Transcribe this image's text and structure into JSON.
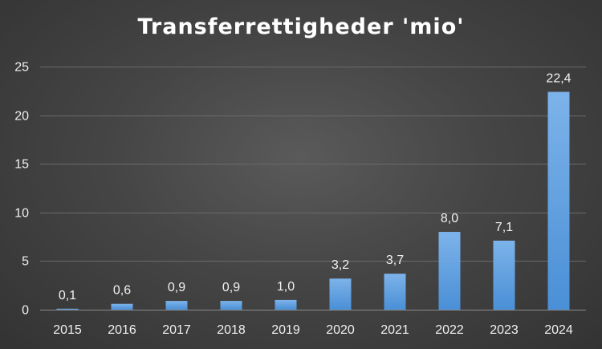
{
  "chart_data": {
    "type": "bar",
    "title": "Transferrettigheder 'mio'",
    "xlabel": "",
    "ylabel": "",
    "categories": [
      "2015",
      "2016",
      "2017",
      "2018",
      "2019",
      "2020",
      "2021",
      "2022",
      "2023",
      "2024"
    ],
    "values": [
      0.1,
      0.6,
      0.9,
      0.9,
      1.0,
      3.2,
      3.7,
      8.0,
      7.1,
      22.4
    ],
    "data_labels": [
      "0,1",
      "0,6",
      "0,9",
      "0,9",
      "1,0",
      "3,2",
      "3,7",
      "8,0",
      "7,1",
      "22,4"
    ],
    "ylim": [
      0,
      25
    ],
    "yticks": [
      0,
      5,
      10,
      15,
      20,
      25
    ],
    "ytick_labels": [
      "0",
      "5",
      "10",
      "15",
      "20",
      "25"
    ],
    "grid": true,
    "legend": "none",
    "colors": {
      "bar_top": "#7db3ea",
      "bar_bottom": "#4a8fd6",
      "background": "#454545",
      "text": "#ffffff"
    }
  }
}
